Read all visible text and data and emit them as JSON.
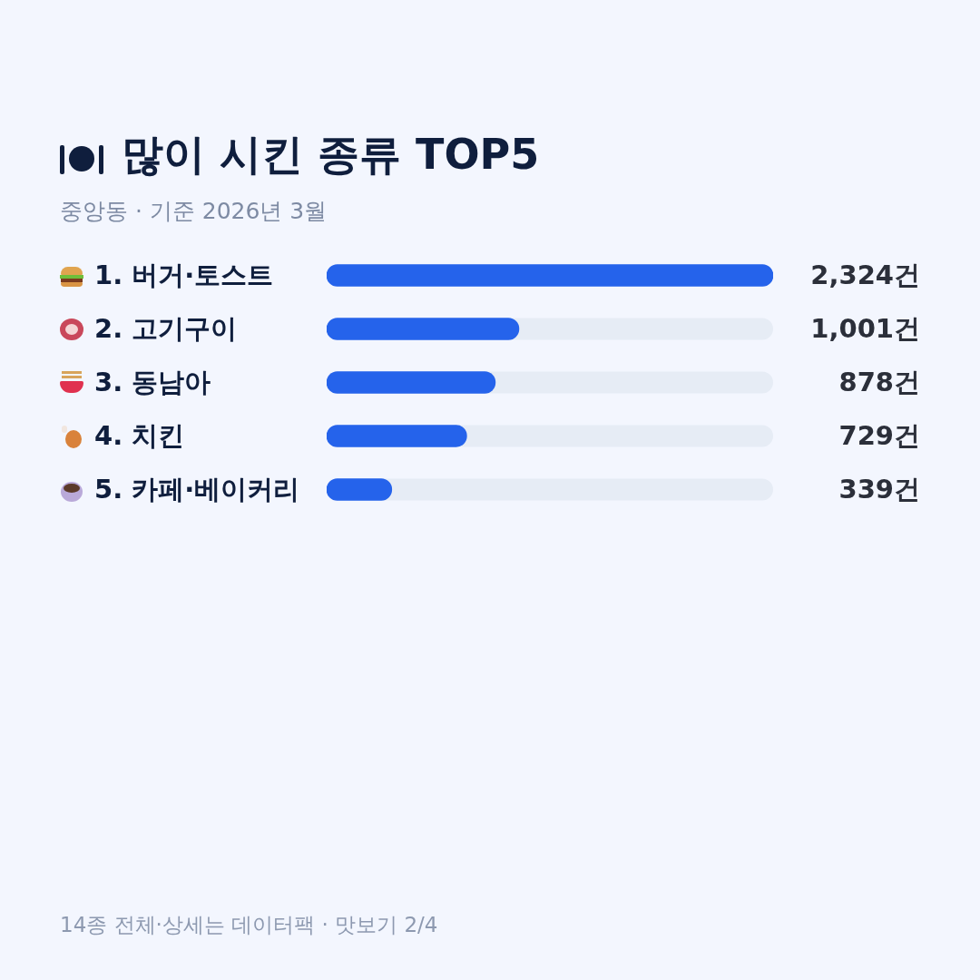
{
  "chart_data": {
    "type": "bar",
    "orientation": "horizontal",
    "tick_labels": false,
    "title": "많이 시킨 종류 TOP5",
    "subtitle": "중앙동 · 기준 2026년 3월",
    "categories": [
      "1. 버거·토스트",
      "2. 고기구이",
      "3. 동남아",
      "4. 치킨",
      "5. 카페·베이커리"
    ],
    "values": [
      2324,
      1001,
      878,
      729,
      339
    ],
    "value_labels": [
      "2,324건",
      "1,001건",
      "878건",
      "729건",
      "339건"
    ],
    "color": "#2563eb",
    "annotations": [
      "14종 전체·상세는 데이터팩 · 맛보기 2/4"
    ]
  }
}
